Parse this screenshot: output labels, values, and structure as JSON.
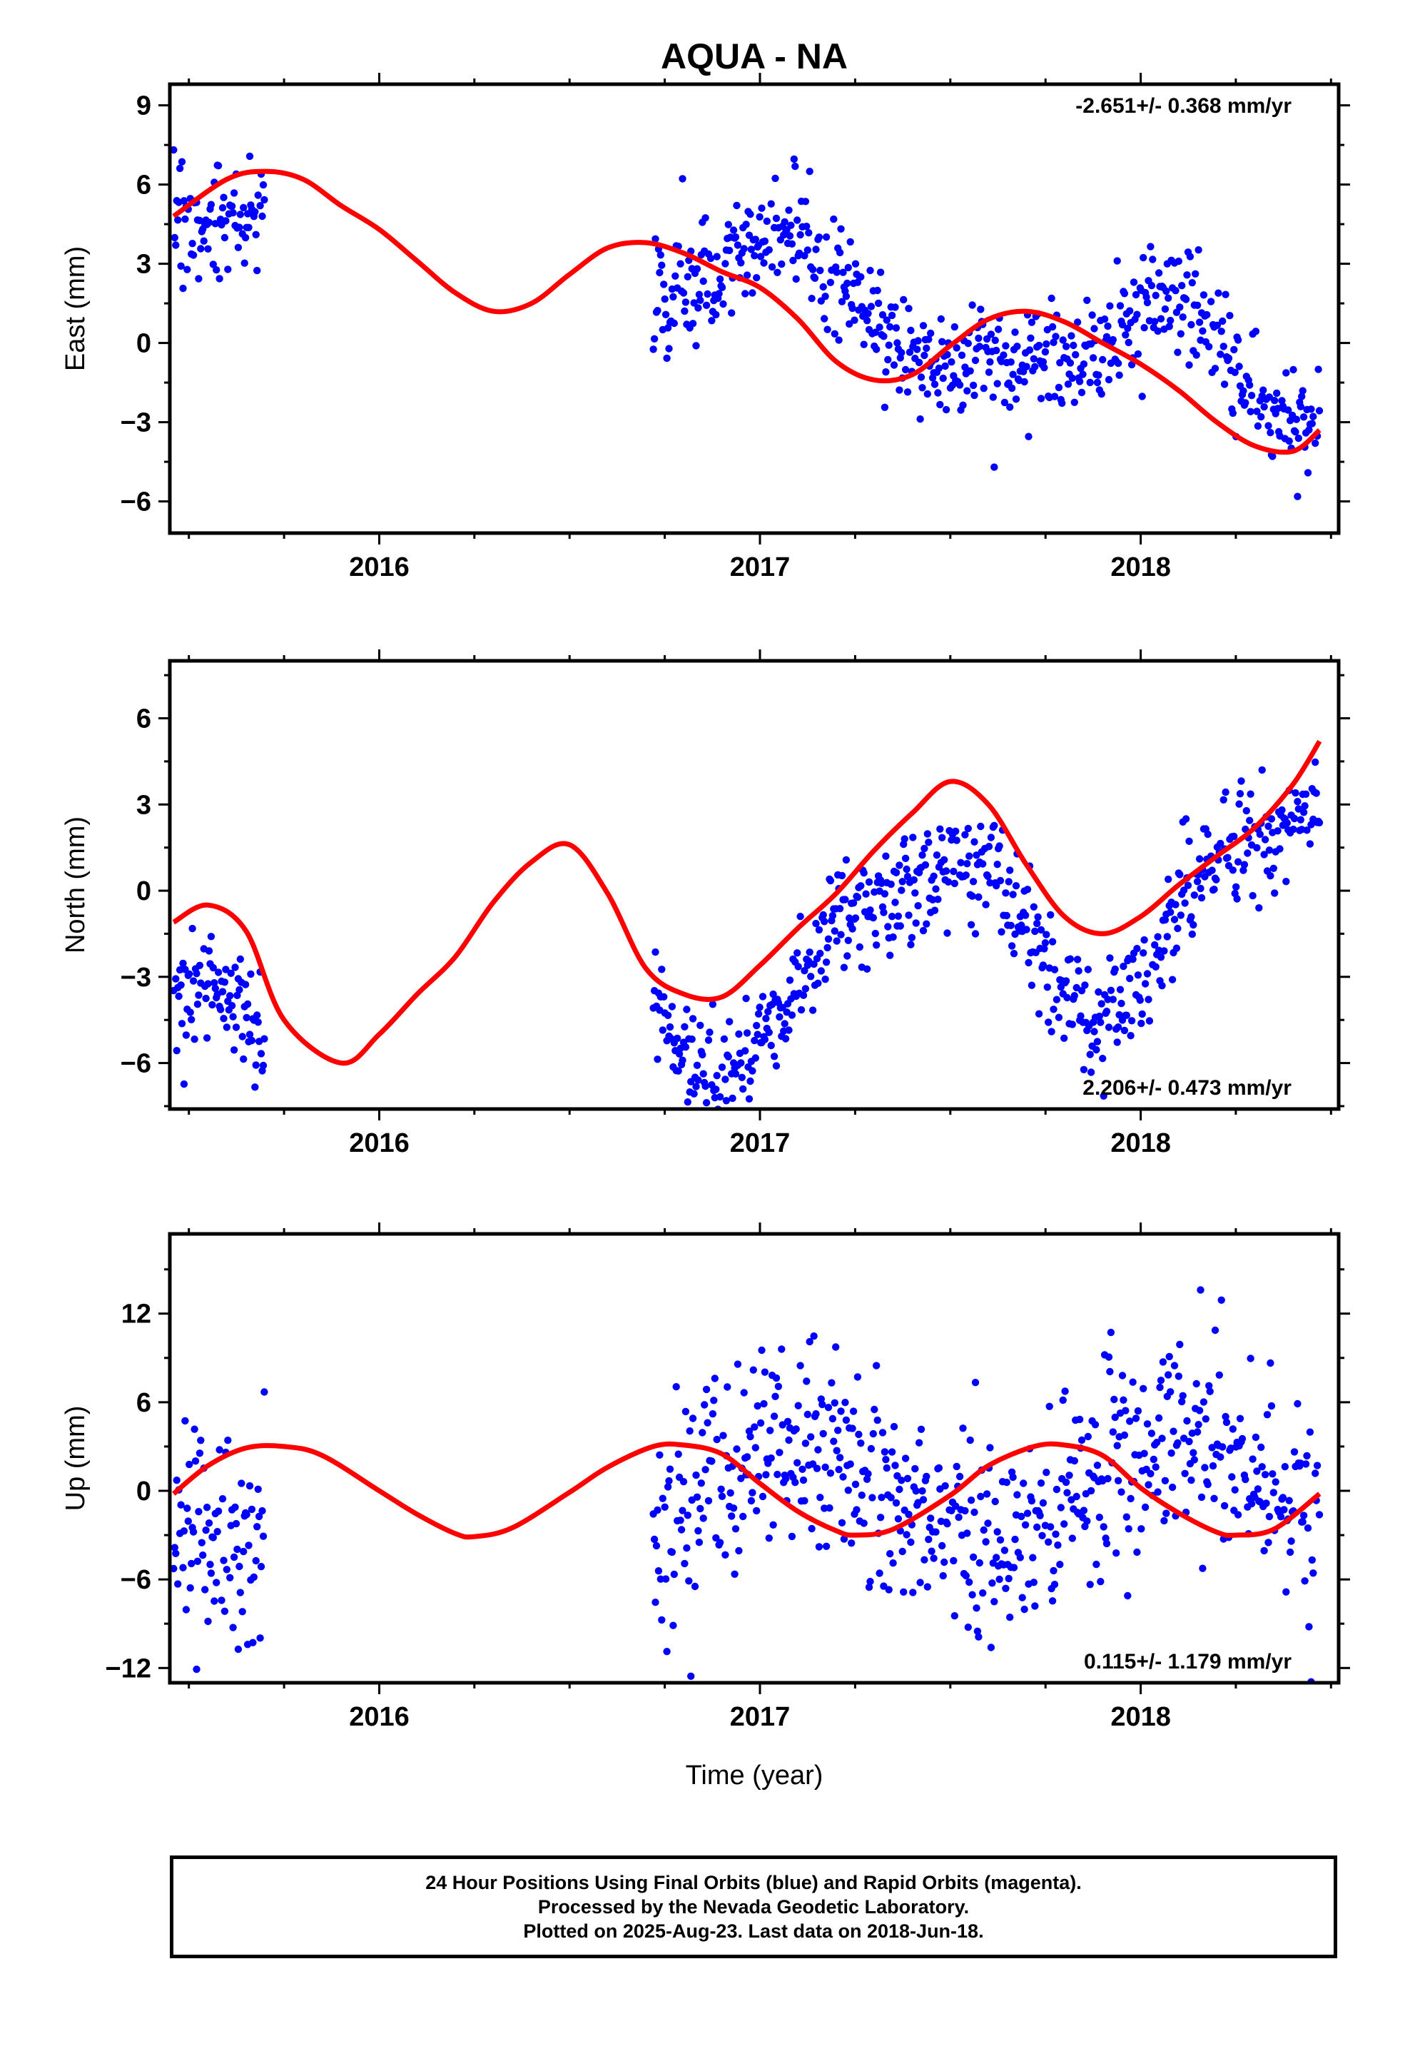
{
  "title": "AQUA - NA",
  "xlabel": "Time (year)",
  "colors": {
    "data": "#0000ff",
    "model": "#ff0000",
    "axis": "#000000"
  },
  "chart_data": [
    {
      "type": "scatter",
      "ylabel": "East (mm)",
      "xlim": [
        2015.45,
        2018.52
      ],
      "ylim": [
        -7.2,
        9.8
      ],
      "yticks": [
        -6,
        -3,
        0,
        3,
        6,
        9
      ],
      "ytick_labels": [
        "−6",
        "−3",
        "0",
        "3",
        "6",
        "9"
      ],
      "xticks": [
        2016,
        2017,
        2018
      ],
      "xtick_labels": [
        "2016",
        "2017",
        "2018"
      ],
      "annotation": "-2.651+/- 0.368 mm/yr",
      "annotation_position": "top-right",
      "series": [
        {
          "kind": "points",
          "segments": [
            [
              2015.46,
              2015.7
            ],
            [
              2016.72,
              2018.47
            ]
          ],
          "trend_mm_per_yr": -2.651,
          "trend_uncertainty": 0.368,
          "seasonal_model": {
            "offset_at_2017": 2.1,
            "annual_sin": 0.57,
            "annual_cos": 1.69,
            "semiannual_sin": 0.68,
            "semiannual_cos": 0.17
          },
          "scatter_std_mm": 1.1
        },
        {
          "kind": "model",
          "x": [
            2015.46,
            2015.6,
            2015.7,
            2015.8,
            2015.9,
            2016.0,
            2016.1,
            2016.2,
            2016.3,
            2016.4,
            2016.5,
            2016.6,
            2016.7,
            2016.8,
            2016.9,
            2017.0,
            2017.1,
            2017.2,
            2017.3,
            2017.4,
            2017.5,
            2017.6,
            2017.7,
            2017.8,
            2017.9,
            2018.0,
            2018.1,
            2018.2,
            2018.3,
            2018.4,
            2018.47
          ],
          "y": [
            4.8,
            6.2,
            6.5,
            6.2,
            5.2,
            4.3,
            3.1,
            1.9,
            1.2,
            1.5,
            2.6,
            3.6,
            3.8,
            3.4,
            2.7,
            2.1,
            0.9,
            -0.7,
            -1.4,
            -1.2,
            -0.1,
            0.9,
            1.2,
            0.8,
            0.0,
            -0.8,
            -1.8,
            -3.0,
            -3.9,
            -4.1,
            -3.3
          ]
        }
      ]
    },
    {
      "type": "scatter",
      "ylabel": "North (mm)",
      "xlim": [
        2015.45,
        2018.52
      ],
      "ylim": [
        -7.6,
        8.0
      ],
      "yticks": [
        -6,
        -3,
        0,
        3,
        6
      ],
      "ytick_labels": [
        "−6",
        "−3",
        "0",
        "3",
        "6"
      ],
      "xticks": [
        2016,
        2017,
        2018
      ],
      "xtick_labels": [
        "2016",
        "2017",
        "2018"
      ],
      "annotation": "2.206+/- 0.473 mm/yr",
      "annotation_position": "bottom-right",
      "series": [
        {
          "kind": "points",
          "segments": [
            [
              2015.46,
              2015.7
            ],
            [
              2016.72,
              2018.47
            ]
          ],
          "trend_mm_per_yr": 2.206,
          "trend_uncertainty": 0.473,
          "seasonal_model": {
            "offset_at_2017": -2.7,
            "annual_sin": 1.33,
            "annual_cos": -2.52,
            "semiannual_sin": 0.92,
            "semiannual_cos": -0.16
          },
          "scatter_std_mm": 1.0
        },
        {
          "kind": "model",
          "x": [
            2015.46,
            2015.55,
            2015.65,
            2015.75,
            2015.9,
            2016.0,
            2016.1,
            2016.2,
            2016.3,
            2016.4,
            2016.5,
            2016.6,
            2016.7,
            2016.8,
            2016.9,
            2017.0,
            2017.1,
            2017.2,
            2017.3,
            2017.4,
            2017.5,
            2017.6,
            2017.7,
            2017.8,
            2017.9,
            2018.0,
            2018.1,
            2018.2,
            2018.3,
            2018.4,
            2018.47
          ],
          "y": [
            -1.1,
            -0.5,
            -1.4,
            -4.5,
            -6.0,
            -5.0,
            -3.6,
            -2.3,
            -0.4,
            1.0,
            1.6,
            -0.1,
            -2.7,
            -3.6,
            -3.7,
            -2.6,
            -1.3,
            -0.1,
            1.4,
            2.7,
            3.8,
            3.0,
            0.9,
            -0.9,
            -1.5,
            -0.9,
            0.2,
            1.2,
            2.2,
            3.7,
            5.2
          ]
        }
      ]
    },
    {
      "type": "scatter",
      "ylabel": "Up (mm)",
      "xlim": [
        2015.45,
        2018.52
      ],
      "ylim": [
        -13.0,
        17.4
      ],
      "yticks": [
        -12,
        -6,
        0,
        6,
        12
      ],
      "ytick_labels": [
        "−12",
        "−6",
        "0",
        "6",
        "12"
      ],
      "xticks": [
        2016,
        2017,
        2018
      ],
      "xtick_labels": [
        "2016",
        "2017",
        "2018"
      ],
      "annotation": "0.115+/- 1.179 mm/yr",
      "annotation_position": "bottom-right",
      "series": [
        {
          "kind": "points",
          "segments": [
            [
              2015.46,
              2015.7
            ],
            [
              2016.72,
              2018.47
            ]
          ],
          "trend_mm_per_yr": 0.115,
          "trend_uncertainty": 1.179,
          "seasonal_model": {
            "offset_at_2017": 0.0,
            "annual_sin": 1.5,
            "annual_cos": 2.6,
            "semiannual_sin": 0.0,
            "semiannual_cos": 0.0
          },
          "scatter_std_mm": 3.5
        },
        {
          "kind": "model",
          "x": [
            2015.46,
            2015.55,
            2015.65,
            2015.75,
            2015.85,
            2016.0,
            2016.1,
            2016.2,
            2016.25,
            2016.35,
            2016.5,
            2016.6,
            2016.72,
            2016.8,
            2016.9,
            2017.0,
            2017.1,
            2017.2,
            2017.25,
            2017.35,
            2017.5,
            2017.6,
            2017.72,
            2017.8,
            2017.9,
            2018.0,
            2018.1,
            2018.2,
            2018.25,
            2018.35,
            2018.47
          ],
          "y": [
            -0.2,
            1.7,
            2.9,
            3.0,
            2.4,
            0.0,
            -1.6,
            -2.9,
            -3.1,
            -2.5,
            -0.1,
            1.6,
            3.0,
            3.1,
            2.5,
            0.5,
            -1.4,
            -2.7,
            -3.0,
            -2.6,
            -0.3,
            1.7,
            3.0,
            3.1,
            2.4,
            0.2,
            -1.5,
            -2.8,
            -3.0,
            -2.6,
            -0.2
          ]
        }
      ]
    }
  ],
  "footer": {
    "line1": "24 Hour Positions Using Final Orbits (blue) and Rapid Orbits (magenta).",
    "line2": "Processed by the Nevada Geodetic Laboratory.",
    "line3": "Plotted on 2025-Aug-23. Last data on 2018-Jun-18."
  }
}
